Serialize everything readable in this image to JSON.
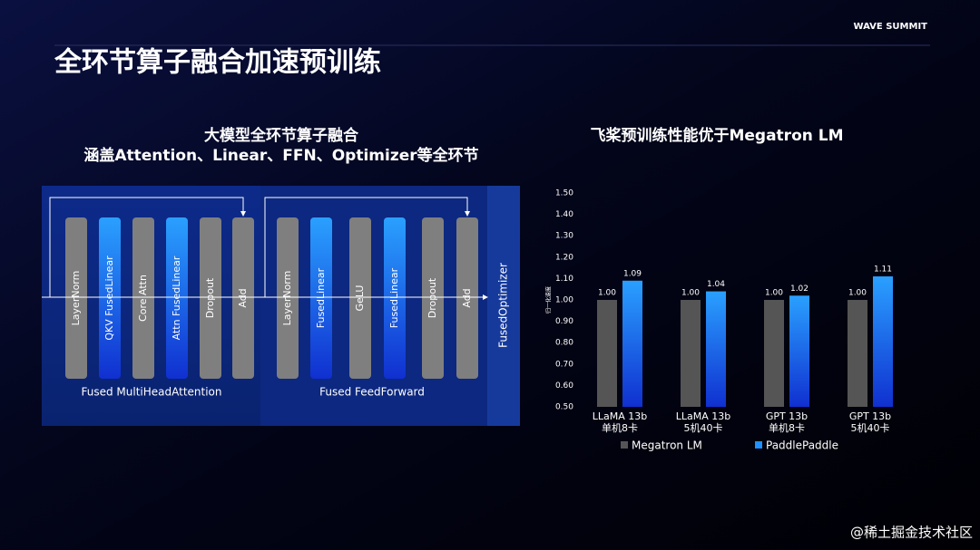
{
  "header": {
    "title": "全环节算子融合加速预训练",
    "logo": "WAVE SUMMIT"
  },
  "diagram": {
    "title": "大模型全环节算子融合",
    "subtitle": "涵盖Attention、Linear、FFN、Optimizer等全环节",
    "groups": [
      {
        "caption": "Fused MultiHeadAttention",
        "nodes": [
          {
            "label": "LayerNorm",
            "color": "#7f7f7f"
          },
          {
            "label": "QKV FusedLinear",
            "color": "#1f6fe6"
          },
          {
            "label": "Core Attn",
            "color": "#7f7f7f"
          },
          {
            "label": "Attn FusedLinear",
            "color": "#1f6fe6"
          },
          {
            "label": "Dropout",
            "color": "#7f7f7f"
          },
          {
            "label": "Add",
            "color": "#7f7f7f"
          }
        ]
      },
      {
        "caption": "Fused FeedForward",
        "nodes": [
          {
            "label": "LayerNorm",
            "color": "#7f7f7f"
          },
          {
            "label": "FusedLinear",
            "color": "#1f6fe6"
          },
          {
            "label": "GeLU",
            "color": "#7f7f7f"
          },
          {
            "label": "FusedLinear",
            "color": "#1f6fe6"
          },
          {
            "label": "Dropout",
            "color": "#7f7f7f"
          },
          {
            "label": "Add",
            "color": "#7f7f7f"
          }
        ]
      }
    ],
    "optimizer": "FusedOptimizer"
  },
  "chart_data": {
    "type": "bar",
    "title": "飞桨预训练性能优于Megatron LM",
    "y_label": "归一化速度",
    "categories": [
      "LLaMA 13b\n单机8卡",
      "LLaMA 13b\n5机40卡",
      "GPT 13b\n单机8卡",
      "GPT 13b\n5机40卡"
    ],
    "series": [
      {
        "name": "Megatron LM",
        "color": "#555555",
        "values": [
          1.0,
          1.0,
          1.0,
          1.0
        ],
        "value_labels": [
          "1.00",
          "1.00",
          "1.00",
          "1.00"
        ]
      },
      {
        "name": "PaddlePaddle",
        "color": "#1e90ff",
        "values": [
          1.09,
          1.04,
          1.02,
          1.11
        ],
        "value_labels": [
          "1.09",
          "1.04",
          "1.02",
          "1.11"
        ]
      }
    ],
    "ylim": [
      0.5,
      1.5
    ],
    "yticks": [
      {
        "value": 0.5,
        "label": "0.50"
      },
      {
        "value": 0.6,
        "label": "0.60"
      },
      {
        "value": 0.7,
        "label": "0.70"
      },
      {
        "value": 0.8,
        "label": "0.80"
      },
      {
        "value": 0.9,
        "label": "0.90"
      },
      {
        "value": 1.0,
        "label": "1.00"
      },
      {
        "value": 1.1,
        "label": "1.10"
      },
      {
        "value": 1.2,
        "label": "1.20"
      },
      {
        "value": 1.3,
        "label": "1.30"
      },
      {
        "value": 1.4,
        "label": "1.40"
      },
      {
        "value": 1.5,
        "label": "1.50"
      }
    ],
    "grid": false,
    "legend": "bottom"
  },
  "watermark": "@稀土掘金技术社区"
}
